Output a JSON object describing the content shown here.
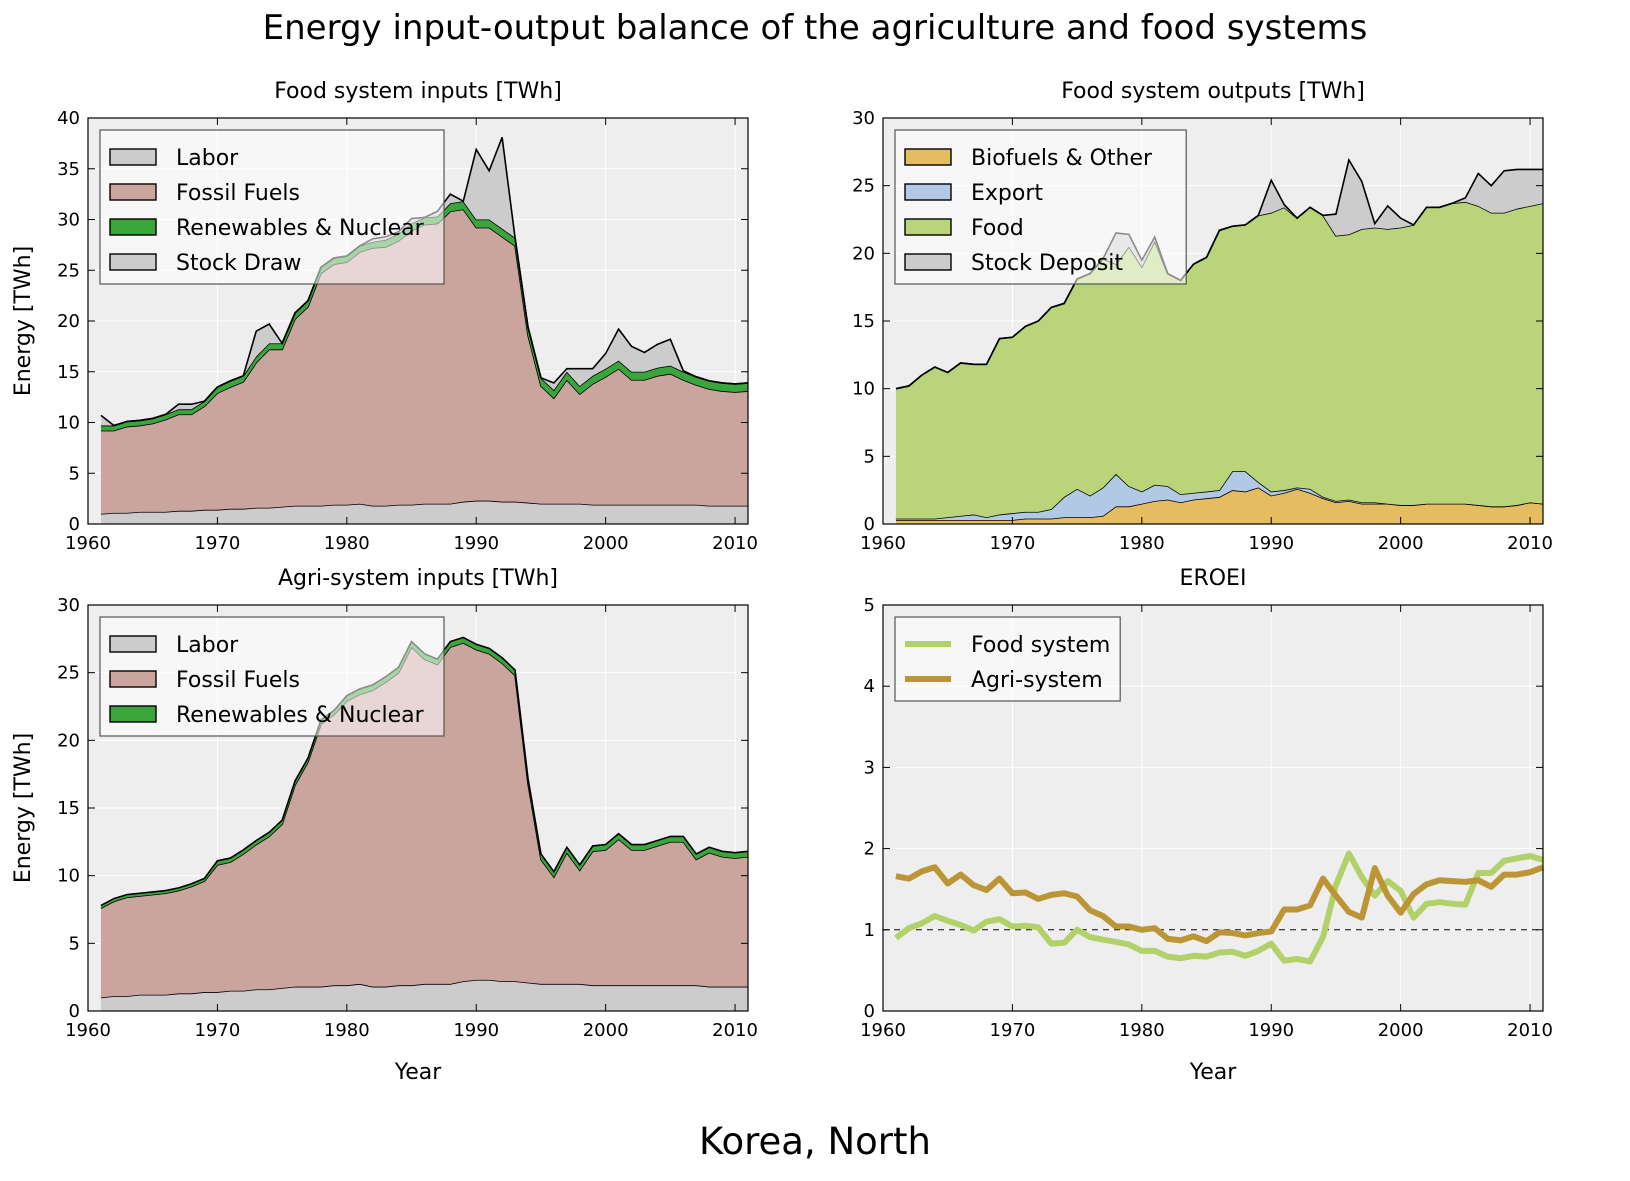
{
  "title": "Energy input-output balance of the agriculture and food systems",
  "country": "Korea, North",
  "colors": {
    "labor": "#cccccc",
    "fossil": "#c9a59e",
    "renewables": "#3aa53a",
    "stock": "#cccccc",
    "biofuels": "#e5bd60",
    "export": "#b2c9e5",
    "food": "#bad47a",
    "eroei_food": "#b3d16b",
    "eroei_agri": "#bc9636",
    "axes_bg": "#eeeeee",
    "grid": "#ffffff"
  },
  "chart_data": [
    {
      "id": "food-inputs",
      "type": "area",
      "title": "Food system inputs [TWh]",
      "xlabel": "",
      "ylabel": "Energy [TWh]",
      "xlim": [
        1960,
        2011
      ],
      "ylim": [
        0,
        40
      ],
      "xticks": [
        "1960",
        "1970",
        "1980",
        "1990",
        "2000",
        "2010"
      ],
      "yticks": [
        "0",
        "5",
        "10",
        "15",
        "20",
        "25",
        "30",
        "35",
        "40"
      ],
      "legend": "top-left",
      "grid": true,
      "x": [
        1961,
        1962,
        1963,
        1964,
        1965,
        1966,
        1967,
        1968,
        1969,
        1970,
        1971,
        1972,
        1973,
        1974,
        1975,
        1976,
        1977,
        1978,
        1979,
        1980,
        1981,
        1982,
        1983,
        1984,
        1985,
        1986,
        1987,
        1988,
        1989,
        1990,
        1991,
        1992,
        1993,
        1994,
        1995,
        1996,
        1997,
        1998,
        1999,
        2000,
        2001,
        2002,
        2003,
        2004,
        2005,
        2006,
        2007,
        2008,
        2009,
        2010,
        2011
      ],
      "series": [
        {
          "name": "Labor",
          "color_key": "labor",
          "values": [
            1.0,
            1.1,
            1.1,
            1.2,
            1.2,
            1.2,
            1.3,
            1.3,
            1.4,
            1.4,
            1.5,
            1.5,
            1.6,
            1.6,
            1.7,
            1.8,
            1.8,
            1.8,
            1.9,
            1.9,
            2.0,
            1.8,
            1.8,
            1.9,
            1.9,
            2.0,
            2.0,
            2.0,
            2.2,
            2.3,
            2.3,
            2.2,
            2.2,
            2.1,
            2.0,
            2.0,
            2.0,
            2.0,
            1.9,
            1.9,
            1.9,
            1.9,
            1.9,
            1.9,
            1.9,
            1.9,
            1.9,
            1.8,
            1.8,
            1.8,
            1.8
          ]
        },
        {
          "name": "Fossil Fuels",
          "color_key": "fossil",
          "values": [
            8.2,
            8.1,
            8.5,
            8.5,
            8.7,
            9.1,
            9.5,
            9.5,
            10.2,
            11.5,
            12.0,
            12.5,
            14.3,
            15.6,
            15.5,
            18.4,
            19.6,
            22.9,
            23.7,
            23.9,
            24.8,
            25.4,
            25.5,
            26.0,
            27.0,
            27.5,
            27.6,
            28.8,
            28.8,
            26.9,
            26.9,
            26.1,
            25.2,
            16.5,
            11.6,
            10.4,
            12.2,
            10.8,
            11.9,
            12.6,
            13.4,
            12.3,
            12.3,
            12.7,
            12.9,
            12.3,
            11.8,
            11.5,
            11.3,
            11.2,
            11.3
          ]
        },
        {
          "name": "Renewables & Nuclear",
          "color_key": "renewables",
          "values": [
            0.5,
            0.5,
            0.5,
            0.5,
            0.5,
            0.5,
            0.5,
            0.5,
            0.5,
            0.6,
            0.6,
            0.6,
            0.6,
            0.6,
            0.6,
            0.6,
            0.6,
            0.6,
            0.6,
            0.6,
            0.6,
            0.6,
            0.7,
            0.7,
            0.7,
            0.7,
            0.7,
            0.8,
            0.8,
            0.8,
            0.8,
            0.8,
            0.8,
            0.8,
            0.8,
            0.8,
            0.8,
            0.8,
            0.8,
            0.8,
            0.8,
            0.8,
            0.8,
            0.8,
            0.8,
            0.8,
            0.8,
            0.8,
            0.8,
            0.8,
            0.8
          ]
        },
        {
          "name": "Stock Draw",
          "color_key": "stock",
          "values": [
            1.0,
            0,
            0,
            0,
            0,
            0,
            0.5,
            0.5,
            0,
            0,
            0,
            0,
            2.5,
            1.9,
            0,
            0,
            0,
            0,
            0,
            0,
            0,
            0.3,
            0.3,
            0.2,
            0.5,
            0,
            0.5,
            0.9,
            0,
            6.9,
            4.8,
            9.0,
            0,
            0,
            0,
            0.7,
            0.3,
            1.7,
            0.7,
            1.5,
            3.1,
            2.5,
            1.9,
            2.3,
            2.6,
            0.1,
            0,
            0,
            0,
            0,
            0
          ]
        }
      ]
    },
    {
      "id": "food-outputs",
      "type": "area",
      "title": "Food system outputs [TWh]",
      "xlabel": "",
      "ylabel": "",
      "xlim": [
        1960,
        2011
      ],
      "ylim": [
        0,
        30
      ],
      "xticks": [
        "1960",
        "1970",
        "1980",
        "1990",
        "2000",
        "2010"
      ],
      "yticks": [
        "0",
        "5",
        "10",
        "15",
        "20",
        "25",
        "30"
      ],
      "legend": "top-left",
      "grid": true,
      "x": [
        1961,
        1962,
        1963,
        1964,
        1965,
        1966,
        1967,
        1968,
        1969,
        1970,
        1971,
        1972,
        1973,
        1974,
        1975,
        1976,
        1977,
        1978,
        1979,
        1980,
        1981,
        1982,
        1983,
        1984,
        1985,
        1986,
        1987,
        1988,
        1989,
        1990,
        1991,
        1992,
        1993,
        1994,
        1995,
        1996,
        1997,
        1998,
        1999,
        2000,
        2001,
        2002,
        2003,
        2004,
        2005,
        2006,
        2007,
        2008,
        2009,
        2010,
        2011
      ],
      "series": [
        {
          "name": "Biofuels & Other",
          "color_key": "biofuels",
          "values": [
            0.3,
            0.3,
            0.3,
            0.3,
            0.3,
            0.3,
            0.3,
            0.3,
            0.3,
            0.3,
            0.4,
            0.4,
            0.4,
            0.5,
            0.5,
            0.5,
            0.6,
            1.3,
            1.3,
            1.5,
            1.7,
            1.8,
            1.6,
            1.8,
            1.9,
            2.0,
            2.5,
            2.4,
            2.7,
            2.1,
            2.3,
            2.6,
            2.3,
            1.9,
            1.6,
            1.7,
            1.5,
            1.5,
            1.5,
            1.4,
            1.4,
            1.5,
            1.5,
            1.5,
            1.5,
            1.4,
            1.3,
            1.3,
            1.4,
            1.6,
            1.5
          ]
        },
        {
          "name": "Export",
          "color_key": "export",
          "values": [
            0.1,
            0.1,
            0.1,
            0.1,
            0.2,
            0.3,
            0.4,
            0.2,
            0.4,
            0.5,
            0.5,
            0.5,
            0.7,
            1.5,
            2.1,
            1.6,
            2.1,
            2.4,
            1.5,
            0.9,
            1.2,
            1.0,
            0.6,
            0.5,
            0.5,
            0.5,
            1.4,
            1.5,
            0.4,
            0.3,
            0.2,
            0.1,
            0.3,
            0.1,
            0.1,
            0.1,
            0.1,
            0.1,
            0,
            0,
            0,
            0,
            0,
            0,
            0,
            0,
            0,
            0,
            0,
            0,
            0
          ]
        },
        {
          "name": "Food",
          "color_key": "food",
          "values": [
            9.6,
            9.8,
            10.6,
            11.2,
            10.7,
            11.3,
            11.1,
            11.3,
            13.0,
            13.0,
            13.7,
            14.1,
            14.9,
            14.3,
            15.5,
            16.4,
            16.9,
            15.5,
            17.7,
            16.6,
            18.0,
            15.7,
            15.8,
            16.9,
            17.3,
            19.2,
            18.1,
            18.2,
            19.7,
            20.6,
            20.9,
            19.9,
            20.8,
            20.8,
            19.6,
            19.6,
            20.2,
            20.3,
            20.3,
            20.5,
            20.7,
            21.9,
            21.9,
            22.2,
            22.3,
            22.1,
            21.7,
            21.7,
            21.9,
            21.9,
            22.2
          ]
        },
        {
          "name": "Stock Deposit",
          "color_key": "stock",
          "values": [
            0,
            0,
            0,
            0,
            0,
            0,
            0,
            0,
            0,
            0,
            0,
            0,
            0,
            0,
            0,
            0,
            0,
            2.3,
            0.9,
            0.5,
            0.3,
            0,
            0,
            0,
            0,
            0,
            0,
            0,
            0,
            2.4,
            0.2,
            0,
            0,
            0,
            1.6,
            5.5,
            3.5,
            0.3,
            1.7,
            0.7,
            0,
            0,
            0,
            0,
            0.3,
            2.4,
            2.0,
            3.1,
            2.9,
            2.7,
            2.5
          ]
        }
      ]
    },
    {
      "id": "agri-inputs",
      "type": "area",
      "title": "Agri-system inputs [TWh]",
      "xlabel": "Year",
      "ylabel": "Energy [TWh]",
      "xlim": [
        1960,
        2011
      ],
      "ylim": [
        0,
        30
      ],
      "xticks": [
        "1960",
        "1970",
        "1980",
        "1990",
        "2000",
        "2010"
      ],
      "yticks": [
        "0",
        "5",
        "10",
        "15",
        "20",
        "25",
        "30"
      ],
      "legend": "top-left",
      "grid": true,
      "x": [
        1961,
        1962,
        1963,
        1964,
        1965,
        1966,
        1967,
        1968,
        1969,
        1970,
        1971,
        1972,
        1973,
        1974,
        1975,
        1976,
        1977,
        1978,
        1979,
        1980,
        1981,
        1982,
        1983,
        1984,
        1985,
        1986,
        1987,
        1988,
        1989,
        1990,
        1991,
        1992,
        1993,
        1994,
        1995,
        1996,
        1997,
        1998,
        1999,
        2000,
        2001,
        2002,
        2003,
        2004,
        2005,
        2006,
        2007,
        2008,
        2009,
        2010,
        2011
      ],
      "series": [
        {
          "name": "Labor",
          "color_key": "labor",
          "values": [
            1.0,
            1.1,
            1.1,
            1.2,
            1.2,
            1.2,
            1.3,
            1.3,
            1.4,
            1.4,
            1.5,
            1.5,
            1.6,
            1.6,
            1.7,
            1.8,
            1.8,
            1.8,
            1.9,
            1.9,
            2.0,
            1.8,
            1.8,
            1.9,
            1.9,
            2.0,
            2.0,
            2.0,
            2.2,
            2.3,
            2.3,
            2.2,
            2.2,
            2.1,
            2.0,
            2.0,
            2.0,
            2.0,
            1.9,
            1.9,
            1.9,
            1.9,
            1.9,
            1.9,
            1.9,
            1.9,
            1.9,
            1.8,
            1.8,
            1.8,
            1.8
          ]
        },
        {
          "name": "Fossil Fuels",
          "color_key": "fossil",
          "values": [
            6.6,
            7.0,
            7.3,
            7.3,
            7.4,
            7.5,
            7.6,
            7.9,
            8.2,
            9.4,
            9.5,
            10.1,
            10.7,
            11.3,
            12.1,
            14.9,
            16.6,
            19.4,
            20.0,
            21.0,
            21.4,
            21.9,
            22.5,
            23.1,
            25.0,
            24.0,
            23.6,
            24.9,
            25.0,
            24.4,
            24.1,
            23.5,
            22.6,
            14.7,
            9.2,
            7.9,
            9.7,
            8.4,
            9.9,
            10.0,
            10.8,
            10.0,
            10.0,
            10.3,
            10.6,
            10.6,
            9.3,
            9.9,
            9.6,
            9.5,
            9.6
          ]
        },
        {
          "name": "Renewables & Nuclear",
          "color_key": "renewables",
          "values": [
            0.2,
            0.2,
            0.2,
            0.2,
            0.2,
            0.2,
            0.2,
            0.2,
            0.2,
            0.3,
            0.3,
            0.3,
            0.3,
            0.3,
            0.3,
            0.3,
            0.3,
            0.3,
            0.3,
            0.4,
            0.4,
            0.4,
            0.4,
            0.4,
            0.4,
            0.4,
            0.4,
            0.4,
            0.4,
            0.4,
            0.4,
            0.4,
            0.4,
            0.4,
            0.4,
            0.4,
            0.4,
            0.4,
            0.4,
            0.4,
            0.4,
            0.4,
            0.4,
            0.4,
            0.4,
            0.4,
            0.4,
            0.4,
            0.4,
            0.4,
            0.4
          ]
        }
      ]
    },
    {
      "id": "eroei",
      "type": "line",
      "title": "EROEI",
      "xlabel": "Year",
      "ylabel": "",
      "xlim": [
        1960,
        2011
      ],
      "ylim": [
        0,
        5
      ],
      "xticks": [
        "1960",
        "1970",
        "1980",
        "1990",
        "2000",
        "2010"
      ],
      "yticks": [
        "0",
        "1",
        "2",
        "3",
        "4",
        "5"
      ],
      "legend": "top-left",
      "grid": true,
      "reference_line": 1,
      "x": [
        1961,
        1962,
        1963,
        1964,
        1965,
        1966,
        1967,
        1968,
        1969,
        1970,
        1971,
        1972,
        1973,
        1974,
        1975,
        1976,
        1977,
        1978,
        1979,
        1980,
        1981,
        1982,
        1983,
        1984,
        1985,
        1986,
        1987,
        1988,
        1989,
        1990,
        1991,
        1992,
        1993,
        1994,
        1995,
        1996,
        1997,
        1998,
        1999,
        2000,
        2001,
        2002,
        2003,
        2004,
        2005,
        2006,
        2007,
        2008,
        2009,
        2010,
        2011
      ],
      "series": [
        {
          "name": "Food system",
          "color_key": "eroei_food",
          "values": [
            0.9,
            1.02,
            1.08,
            1.17,
            1.11,
            1.06,
            0.99,
            1.1,
            1.13,
            1.04,
            1.05,
            1.03,
            0.83,
            0.84,
            1.0,
            0.91,
            0.88,
            0.85,
            0.82,
            0.74,
            0.74,
            0.67,
            0.65,
            0.68,
            0.67,
            0.72,
            0.73,
            0.68,
            0.74,
            0.83,
            0.62,
            0.64,
            0.61,
            0.91,
            1.55,
            1.94,
            1.65,
            1.42,
            1.6,
            1.48,
            1.15,
            1.32,
            1.34,
            1.32,
            1.31,
            1.7,
            1.7,
            1.85,
            1.88,
            1.91,
            1.86
          ]
        },
        {
          "name": "Agri-system",
          "color_key": "eroei_agri",
          "values": [
            1.66,
            1.63,
            1.72,
            1.77,
            1.57,
            1.68,
            1.55,
            1.49,
            1.63,
            1.45,
            1.46,
            1.38,
            1.43,
            1.45,
            1.41,
            1.24,
            1.17,
            1.04,
            1.04,
            1.0,
            1.02,
            0.89,
            0.87,
            0.92,
            0.86,
            0.97,
            0.96,
            0.93,
            0.96,
            0.98,
            1.25,
            1.25,
            1.3,
            1.63,
            1.42,
            1.22,
            1.15,
            1.76,
            1.42,
            1.21,
            1.44,
            1.56,
            1.61,
            1.6,
            1.59,
            1.61,
            1.53,
            1.68,
            1.68,
            1.71,
            1.77
          ]
        }
      ]
    }
  ]
}
